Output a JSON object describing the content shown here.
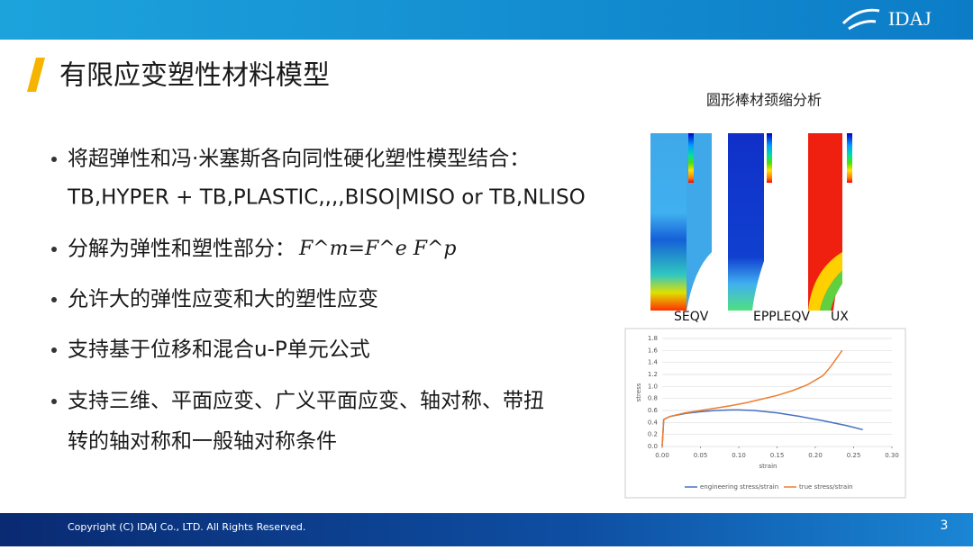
{
  "header": {
    "logo": "IDAJ"
  },
  "title": "有限应变塑性材料模型",
  "bullets": [
    {
      "lines": [
        "将超弹性和冯·米塞斯各向同性硬化塑性模型结合：",
        "TB,HYPER + TB,PLASTIC,,,,BISO|MISO or TB,NLISO"
      ]
    },
    {
      "lines": [
        "分解为弹性和塑性部分："
      ],
      "formula": "F^m=F^e F^p"
    },
    {
      "lines": [
        "允许大的弹性应变和大的塑性应变"
      ]
    },
    {
      "lines": [
        "支持基于位移和混合u-P单元公式"
      ]
    },
    {
      "lines": [
        "支持三维、平面应变、广义平面应变、轴对称、带扭",
        "转的轴对称和一般轴对称条件"
      ]
    }
  ],
  "figure": {
    "caption": "圆形棒材颈缩分析",
    "panel_labels": [
      "SEQV",
      "EPPLEQV",
      "UX"
    ],
    "chart": {
      "type": "line",
      "x_label": "strain",
      "y_label": "stress",
      "xlim": [
        0,
        0.3
      ],
      "ylim": [
        0,
        1.8
      ],
      "xticks": [
        {
          "value": 0,
          "label": "0.00"
        },
        0.05,
        {
          "value": 0.1,
          "label": "0.10"
        },
        0.15,
        {
          "value": 0.2,
          "label": "0.20"
        },
        0.25,
        {
          "value": 0.3,
          "label": "0.30"
        }
      ],
      "yticks": [
        {
          "value": 0,
          "label": "0.0"
        },
        0.2,
        0.4,
        0.6,
        0.8,
        {
          "value": 1,
          "label": "1.0"
        },
        1.2,
        1.4,
        1.6,
        1.8
      ],
      "grid": true,
      "series": [
        {
          "name": "engineering stress/strain",
          "color": "#4472c4",
          "x": [
            0,
            0.002,
            0.01,
            0.03,
            0.05,
            0.07,
            0.09,
            0.1,
            0.12,
            0.15,
            0.18,
            0.21,
            0.24,
            0.262
          ],
          "values": [
            0,
            0.45,
            0.5,
            0.55,
            0.58,
            0.6,
            0.61,
            0.61,
            0.6,
            0.56,
            0.5,
            0.43,
            0.35,
            0.28
          ]
        },
        {
          "name": "true stress/strain",
          "color": "#ed7d31",
          "x": [
            0,
            0.002,
            0.01,
            0.03,
            0.05,
            0.07,
            0.09,
            0.11,
            0.13,
            0.15,
            0.17,
            0.19,
            0.21,
            0.22,
            0.235
          ],
          "values": [
            0,
            0.45,
            0.5,
            0.56,
            0.6,
            0.64,
            0.68,
            0.73,
            0.79,
            0.85,
            0.93,
            1.03,
            1.18,
            1.33,
            1.6
          ]
        }
      ]
    }
  },
  "footer": {
    "copyright": "Copyright (C)  IDAJ Co., LTD. All Rights Reserved.",
    "page": "3"
  }
}
